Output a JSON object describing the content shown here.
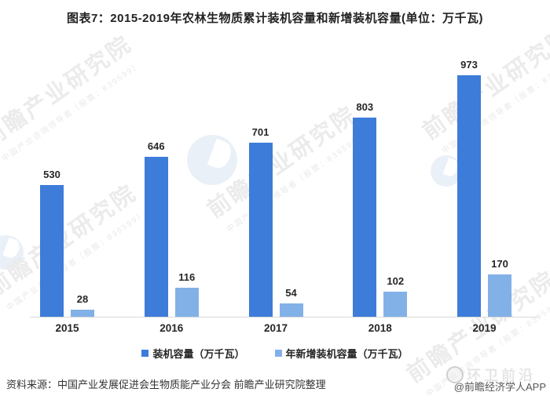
{
  "title": "图表7：2015-2019年农林生物质累计装机容量和新增装机容量(单位：万千瓦)",
  "chart_data": {
    "type": "bar",
    "categories": [
      "2015",
      "2016",
      "2017",
      "2018",
      "2019"
    ],
    "series": [
      {
        "name": "装机容量（万千瓦）",
        "color": "#3d7cd9",
        "values": [
          530,
          646,
          701,
          803,
          973
        ]
      },
      {
        "name": "年新增装机容量（万千瓦）",
        "color": "#82b1e8",
        "values": [
          28,
          116,
          54,
          102,
          170
        ]
      }
    ],
    "title": "图表7：2015-2019年农林生物质累计装机容量和新增装机容量(单位：万千瓦)",
    "xlabel": "",
    "ylabel": "",
    "ylim": [
      0,
      1000
    ],
    "grid": false,
    "legend_position": "bottom",
    "value_labels": true
  },
  "watermark": {
    "text": "前瞻产业研究院",
    "subtext": "中国产业咨询领导者（股票：839599）"
  },
  "footer": {
    "source": "资料来源：中国产业发展促进会生物质能产业分会 前瞻产业研究院整理",
    "credit": "@前瞻经济学人APP",
    "stamp": "环卫前沿"
  },
  "colors": {
    "series1": "#3d7cd9",
    "series2": "#82b1e8",
    "axis": "#d9d9d9",
    "text": "#262626",
    "watermark": "#ebebeb",
    "background": "#ffffff"
  }
}
